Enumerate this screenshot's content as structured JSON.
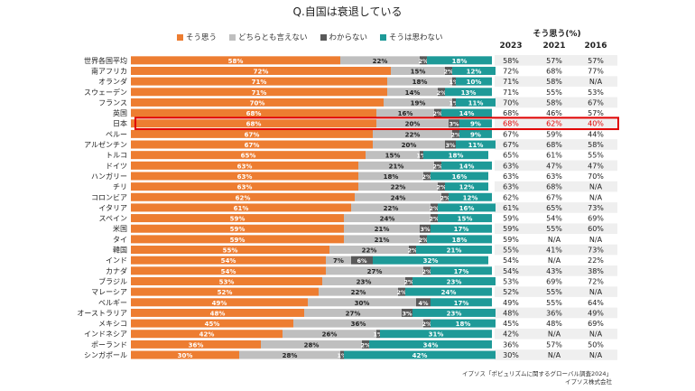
{
  "chart_data": {
    "type": "bar",
    "title": "Q.自国は衰退している",
    "legend": [
      {
        "name": "そう思う",
        "color": "#ED7D31"
      },
      {
        "name": "どちらとも言えない",
        "color": "#BFBFBF"
      },
      {
        "name": "わからない",
        "color": "#595959"
      },
      {
        "name": "そうは思わない",
        "color": "#1E9A98"
      }
    ],
    "series": [
      {
        "name": "そう思う",
        "values": [
          58,
          72,
          71,
          71,
          70,
          68,
          68,
          67,
          67,
          65,
          63,
          63,
          63,
          62,
          61,
          59,
          59,
          59,
          55,
          54,
          54,
          53,
          52,
          49,
          48,
          45,
          42,
          36,
          30
        ]
      },
      {
        "name": "どちらとも言えない",
        "values": [
          22,
          15,
          18,
          14,
          19,
          16,
          20,
          22,
          20,
          15,
          21,
          18,
          22,
          24,
          22,
          24,
          21,
          21,
          22,
          7,
          27,
          23,
          22,
          30,
          27,
          36,
          26,
          28,
          28
        ]
      },
      {
        "name": "わからない",
        "values": [
          2,
          2,
          1,
          2,
          1,
          2,
          3,
          2,
          3,
          1,
          2,
          2,
          2,
          2,
          2,
          2,
          3,
          2,
          2,
          6,
          2,
          2,
          2,
          4,
          3,
          2,
          1,
          2,
          1
        ]
      },
      {
        "name": "そうは思わない",
        "values": [
          18,
          12,
          10,
          13,
          11,
          14,
          9,
          9,
          11,
          18,
          14,
          16,
          12,
          12,
          16,
          15,
          17,
          18,
          21,
          32,
          17,
          23,
          24,
          17,
          23,
          18,
          31,
          34,
          42
        ]
      }
    ],
    "categories": [
      "世界各国平均",
      "南アフリカ",
      "オランダ",
      "スウェーデン",
      "フランス",
      "英国",
      "日本",
      "ペルー",
      "アルゼンチン",
      "トルコ",
      "ドイツ",
      "ハンガリー",
      "チリ",
      "コロンビア",
      "イタリア",
      "スペイン",
      "米国",
      "タイ",
      "韓国",
      "インド",
      "カナダ",
      "ブラジル",
      "マレーシア",
      "ベルギー",
      "オーストラリア",
      "メキシコ",
      "インドネシア",
      "ポーランド",
      "シンガポール"
    ],
    "highlight_category": "日本",
    "xlim": [
      0,
      100
    ],
    "unit": "%",
    "trend_table": {
      "header": "そう思う(%)",
      "columns": [
        "2023",
        "2021",
        "2016"
      ],
      "rows": [
        [
          "58%",
          "57%",
          "57%"
        ],
        [
          "72%",
          "68%",
          "77%"
        ],
        [
          "71%",
          "58%",
          "N/A"
        ],
        [
          "71%",
          "55%",
          "53%"
        ],
        [
          "70%",
          "58%",
          "67%"
        ],
        [
          "68%",
          "46%",
          "57%"
        ],
        [
          "68%",
          "62%",
          "40%"
        ],
        [
          "67%",
          "59%",
          "44%"
        ],
        [
          "67%",
          "68%",
          "58%"
        ],
        [
          "65%",
          "61%",
          "55%"
        ],
        [
          "63%",
          "47%",
          "47%"
        ],
        [
          "63%",
          "63%",
          "70%"
        ],
        [
          "63%",
          "68%",
          "N/A"
        ],
        [
          "62%",
          "67%",
          "N/A"
        ],
        [
          "61%",
          "65%",
          "73%"
        ],
        [
          "59%",
          "54%",
          "69%"
        ],
        [
          "59%",
          "55%",
          "60%"
        ],
        [
          "59%",
          "N/A",
          "N/A"
        ],
        [
          "55%",
          "41%",
          "73%"
        ],
        [
          "54%",
          "N/A",
          "22%"
        ],
        [
          "54%",
          "43%",
          "38%"
        ],
        [
          "53%",
          "69%",
          "72%"
        ],
        [
          "52%",
          "55%",
          "N/A"
        ],
        [
          "49%",
          "55%",
          "64%"
        ],
        [
          "48%",
          "36%",
          "49%"
        ],
        [
          "45%",
          "48%",
          "69%"
        ],
        [
          "42%",
          "N/A",
          "N/A"
        ],
        [
          "36%",
          "57%",
          "50%"
        ],
        [
          "30%",
          "N/A",
          "N/A"
        ]
      ]
    }
  },
  "source": {
    "line1": "イプソス「ポピュリズムに関するグローバル調査2024」",
    "line2": "イプソス株式会社"
  },
  "colors": {
    "highlight": "#E00000",
    "label_light": "#ffffff",
    "label_dark": "#222222"
  }
}
